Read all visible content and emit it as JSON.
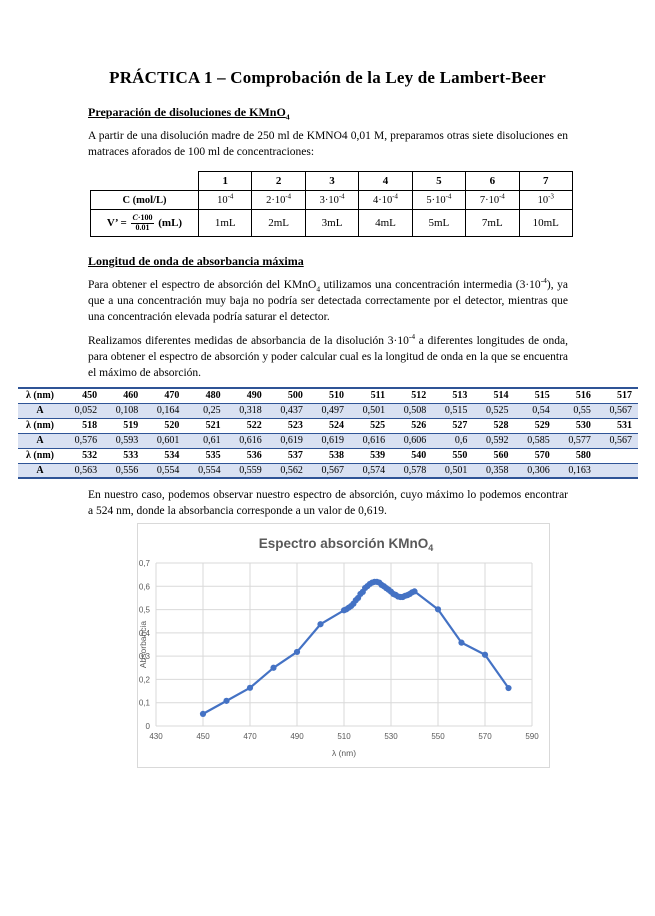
{
  "document": {
    "title": "PRÁCTICA 1 – Comprobación de la Ley de Lambert-Beer"
  },
  "prep_section": {
    "heading": {
      "pre": "Preparación de disoluciones de KMnO",
      "sub": "4"
    },
    "paragraph": "A partir de una disolución madre de 250 ml de KMNO4 0,01 M, preparamos otras siete disoluciones en matraces aforados de 100 ml de concentraciones:",
    "table": {
      "columns": [
        "1",
        "2",
        "3",
        "4",
        "5",
        "6",
        "7"
      ],
      "conc_label": "C (mol/L)",
      "conc_values": [
        {
          "base": "10",
          "exp": "-4"
        },
        {
          "base": "2·10",
          "exp": "-4"
        },
        {
          "base": "3·10",
          "exp": "-4"
        },
        {
          "base": "4·10",
          "exp": "-4"
        },
        {
          "base": "5·10",
          "exp": "-4"
        },
        {
          "base": "7·10",
          "exp": "-4"
        },
        {
          "base": "10",
          "exp": "-3"
        }
      ],
      "vol_label": {
        "prefix": "V’ = ",
        "frac_num_italic": "C",
        "frac_num_rest": "·100",
        "frac_den": "0.01",
        "suffix": " (mL)"
      },
      "vol_values": [
        "1mL",
        "2mL",
        "3mL",
        "4mL",
        "5mL",
        "7mL",
        "10mL"
      ]
    }
  },
  "lambda_section": {
    "heading": "Longitud de onda de absorbancia máxima",
    "para1": {
      "pre": "Para obtener el espectro de absorción del KMnO",
      "sub": "4",
      "mid": " utilizamos una concentración intermedia (3·10",
      "sup": "-4",
      "post": "), ya que a una concentración muy baja no podría ser detectada correctamente por el detector, mientras que una concentración elevada podría saturar el detector."
    },
    "para2": {
      "pre": "Realizamos diferentes medidas de absorbancia de la disolución 3·10",
      "sup": "-4",
      "post": " a diferentes longitudes de onda, para obtener el espectro de absorción y poder calcular cual es la longitud de onda en la que se encuentra el máximo de absorción."
    },
    "table": {
      "lambda_label": "λ (nm)",
      "a_label": "A",
      "rows": [
        {
          "lambdas": [
            "450",
            "460",
            "470",
            "480",
            "490",
            "500",
            "510",
            "511",
            "512",
            "513",
            "514",
            "515",
            "516",
            "517"
          ],
          "values": [
            "0,052",
            "0,108",
            "0,164",
            "0,25",
            "0,318",
            "0,437",
            "0,497",
            "0,501",
            "0,508",
            "0,515",
            "0,525",
            "0,54",
            "0,55",
            "0,567"
          ]
        },
        {
          "lambdas": [
            "518",
            "519",
            "520",
            "521",
            "522",
            "523",
            "524",
            "525",
            "526",
            "527",
            "528",
            "529",
            "530",
            "531"
          ],
          "values": [
            "0,576",
            "0,593",
            "0,601",
            "0,61",
            "0,616",
            "0,619",
            "0,619",
            "0,616",
            "0,606",
            "0,6",
            "0,592",
            "0,585",
            "0,577",
            "0,567"
          ]
        },
        {
          "lambdas": [
            "532",
            "533",
            "534",
            "535",
            "536",
            "537",
            "538",
            "539",
            "540",
            "550",
            "560",
            "570",
            "580",
            ""
          ],
          "values": [
            "0,563",
            "0,556",
            "0,554",
            "0,554",
            "0,559",
            "0,562",
            "0,567",
            "0,574",
            "0,578",
            "0,501",
            "0,358",
            "0,306",
            "0,163",
            ""
          ]
        }
      ]
    },
    "para3": "En nuestro caso, podemos observar nuestro espectro de absorción, cuyo máximo lo podemos encontrar a 524 nm, donde la absorbancia corresponde a un valor de 0,619."
  },
  "chart_data": {
    "type": "line",
    "title": {
      "pre": "Espectro absorción KMnO",
      "sub": "4"
    },
    "xlabel": "λ (nm)",
    "ylabel": "Absorbancia",
    "x": [
      450,
      460,
      470,
      480,
      490,
      500,
      510,
      511,
      512,
      513,
      514,
      515,
      516,
      517,
      518,
      519,
      520,
      521,
      522,
      523,
      524,
      525,
      526,
      527,
      528,
      529,
      530,
      531,
      532,
      533,
      534,
      535,
      536,
      537,
      538,
      539,
      540,
      550,
      560,
      570,
      580
    ],
    "y": [
      0.052,
      0.108,
      0.164,
      0.25,
      0.318,
      0.437,
      0.497,
      0.501,
      0.508,
      0.515,
      0.525,
      0.54,
      0.55,
      0.567,
      0.576,
      0.593,
      0.601,
      0.61,
      0.616,
      0.619,
      0.619,
      0.616,
      0.606,
      0.6,
      0.592,
      0.585,
      0.577,
      0.567,
      0.563,
      0.556,
      0.554,
      0.554,
      0.559,
      0.562,
      0.567,
      0.574,
      0.578,
      0.501,
      0.358,
      0.306,
      0.163
    ],
    "xlim": [
      430,
      590
    ],
    "ylim": [
      0,
      0.7
    ],
    "x_ticks": [
      "430",
      "450",
      "470",
      "490",
      "510",
      "530",
      "550",
      "570",
      "590"
    ],
    "y_ticks": [
      "0",
      "0,1",
      "0,2",
      "0,3",
      "0,4",
      "0,5",
      "0,6",
      "0,7"
    ],
    "grid": true,
    "legend": "none",
    "line_color": "#4472C4",
    "grid_color": "#D9D9D9",
    "text_color": "#595959"
  }
}
